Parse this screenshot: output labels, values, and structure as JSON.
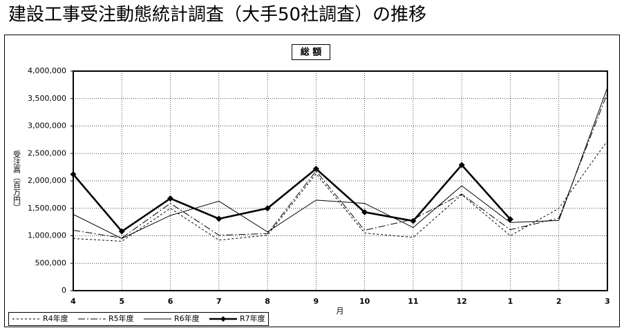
{
  "chart_data": {
    "type": "line",
    "title": "建設工事受注動態統計調査（大手50社調査）の推移",
    "subtitle": "総 額",
    "y_label": "受注高（百万円）",
    "x_label": "月",
    "categories": [
      "4",
      "5",
      "6",
      "7",
      "8",
      "9",
      "10",
      "11",
      "12",
      "1",
      "2",
      "3"
    ],
    "series": [
      {
        "name": "R4年度",
        "color": "#000000",
        "style": "dashed",
        "marker": false,
        "values": [
          950000,
          900000,
          1500000,
          920000,
          1010000,
          2130000,
          1050000,
          970000,
          1750000,
          1000000,
          1500000,
          2730000
        ]
      },
      {
        "name": "R5年度",
        "color": "#000000",
        "style": "dashdot",
        "marker": false,
        "values": [
          1100000,
          960000,
          1590000,
          1010000,
          1040000,
          2180000,
          1100000,
          1300000,
          1760000,
          1110000,
          1320000,
          3600000
        ]
      },
      {
        "name": "R6年度",
        "color": "#000000",
        "style": "solid",
        "marker": false,
        "values": [
          1390000,
          950000,
          1370000,
          1630000,
          1070000,
          1650000,
          1590000,
          1150000,
          1910000,
          1240000,
          1280000,
          3700000
        ]
      },
      {
        "name": "R7年度",
        "color": "#000000",
        "style": "bold",
        "marker": true,
        "values": [
          2120000,
          1080000,
          1680000,
          1310000,
          1500000,
          2220000,
          1430000,
          1270000,
          2290000,
          1300000,
          null,
          null
        ]
      }
    ],
    "ylim": [
      0,
      4000000
    ],
    "yticks": [
      0,
      {
        "value": 500000,
        "label": "500,000"
      },
      {
        "value": 1000000,
        "label": "1,000,000"
      },
      {
        "value": 1500000,
        "label": "1,500,000"
      },
      {
        "value": 2000000,
        "label": "2,000,000"
      },
      {
        "value": 2500000,
        "label": "2,500,000"
      },
      {
        "value": 3000000,
        "label": "3,000,000"
      },
      {
        "value": 3500000,
        "label": "3,500,000"
      },
      {
        "value": 4000000,
        "label": "4,000,000"
      }
    ],
    "grid": true,
    "legend": "bottom-left"
  }
}
